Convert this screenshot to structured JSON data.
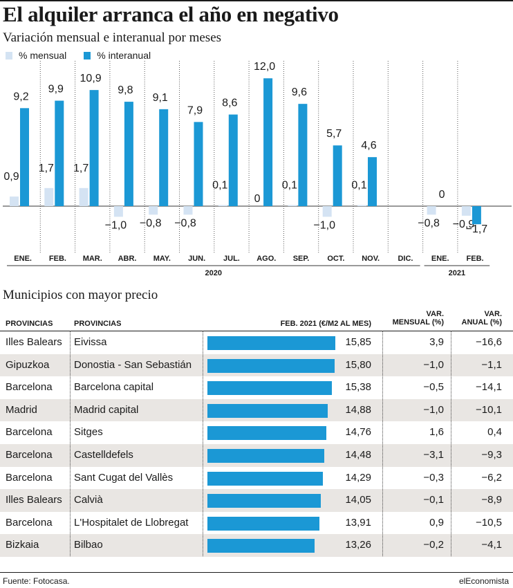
{
  "title": "El alquiler arranca el año en negativo",
  "subtitle": "Variación mensual e interanual por meses",
  "legend": {
    "mensual": "% mensual",
    "interanual": "% interanual"
  },
  "colors": {
    "mensual": "#d4e3f3",
    "interanual": "#1b98d5",
    "row_shade": "#e9e6e3"
  },
  "chart_data": {
    "type": "bar",
    "categories": [
      "ENE.",
      "FEB.",
      "MAR.",
      "ABR.",
      "MAY.",
      "JUN.",
      "JUL.",
      "AGO.",
      "SEP.",
      "OCT.",
      "NOV.",
      "DIC.",
      "ENE.",
      "FEB."
    ],
    "years": [
      {
        "label": "2020",
        "from": 0,
        "to": 11
      },
      {
        "label": "2021",
        "from": 12,
        "to": 13
      }
    ],
    "series": [
      {
        "name": "% mensual",
        "values": [
          0.9,
          1.7,
          1.7,
          -1.0,
          -0.8,
          -0.8,
          0.1,
          0,
          0.1,
          -1.0,
          0.1,
          0,
          -0.8,
          -0.9
        ],
        "labels": [
          "0,9",
          "1,7",
          "1,7",
          "−1,0",
          "−0,8",
          "−0,8",
          "0,1",
          "",
          "0,1",
          "−1,0",
          "0,1",
          "",
          "−0,8",
          "−0,9"
        ]
      },
      {
        "name": "% interanual",
        "values": [
          9.2,
          9.9,
          10.9,
          9.8,
          9.1,
          7.9,
          8.6,
          12.0,
          9.6,
          5.7,
          4.6,
          null,
          0,
          -1.7
        ],
        "labels": [
          "9,2",
          "9,9",
          "10,9",
          "9,8",
          "9,1",
          "7,9",
          "8,6",
          "12,0",
          "9,6",
          "5,7",
          "4,6",
          "",
          "0",
          "−1,7"
        ]
      }
    ],
    "ylim": [
      -2.5,
      13
    ]
  },
  "table": {
    "title": "Municipios con mayor precio",
    "headers": {
      "col1": "PROVINCIAS",
      "col2": "PROVINCIAS",
      "col3": "FEB. 2021 (€/M2 AL MES)",
      "col4a": "VAR.",
      "col4b": "MENSUAL (%)",
      "col5a": "VAR.",
      "col5b": "ANUAL (%)"
    },
    "bar_max": 15.85,
    "rows": [
      {
        "provincia": "Illes Balears",
        "municipio": "Eivissa",
        "precio": 15.85,
        "precio_label": "15,85",
        "mensual": "3,9",
        "anual": "−16,6"
      },
      {
        "provincia": "Gipuzkoa",
        "municipio": "Donostia - San Sebastián",
        "precio": 15.8,
        "precio_label": "15,80",
        "mensual": "−1,0",
        "anual": "−1,1"
      },
      {
        "provincia": "Barcelona",
        "municipio": "Barcelona capital",
        "precio": 15.38,
        "precio_label": "15,38",
        "mensual": "−0,5",
        "anual": "−14,1"
      },
      {
        "provincia": "Madrid",
        "municipio": "Madrid capital",
        "precio": 14.88,
        "precio_label": "14,88",
        "mensual": "−1,0",
        "anual": "−10,1"
      },
      {
        "provincia": "Barcelona",
        "municipio": "Sitges",
        "precio": 14.76,
        "precio_label": "14,76",
        "mensual": "1,6",
        "anual": "0,4"
      },
      {
        "provincia": "Barcelona",
        "municipio": "Castelldefels",
        "precio": 14.48,
        "precio_label": "14,48",
        "mensual": "−3,1",
        "anual": "−9,3"
      },
      {
        "provincia": "Barcelona",
        "municipio": "Sant Cugat del Vallès",
        "precio": 14.29,
        "precio_label": "14,29",
        "mensual": "−0,3",
        "anual": "−6,2"
      },
      {
        "provincia": "Illes Balears",
        "municipio": "Calvià",
        "precio": 14.05,
        "precio_label": "14,05",
        "mensual": "−0,1",
        "anual": "−8,9"
      },
      {
        "provincia": "Barcelona",
        "municipio": "L'Hospitalet de Llobregat",
        "precio": 13.91,
        "precio_label": "13,91",
        "mensual": "0,9",
        "anual": "−10,5"
      },
      {
        "provincia": "Bizkaia",
        "municipio": "Bilbao",
        "precio": 13.26,
        "precio_label": "13,26",
        "mensual": "−0,2",
        "anual": "−4,1"
      }
    ]
  },
  "footer": {
    "source": "Fuente: Fotocasa.",
    "brand": "elEconomista"
  }
}
